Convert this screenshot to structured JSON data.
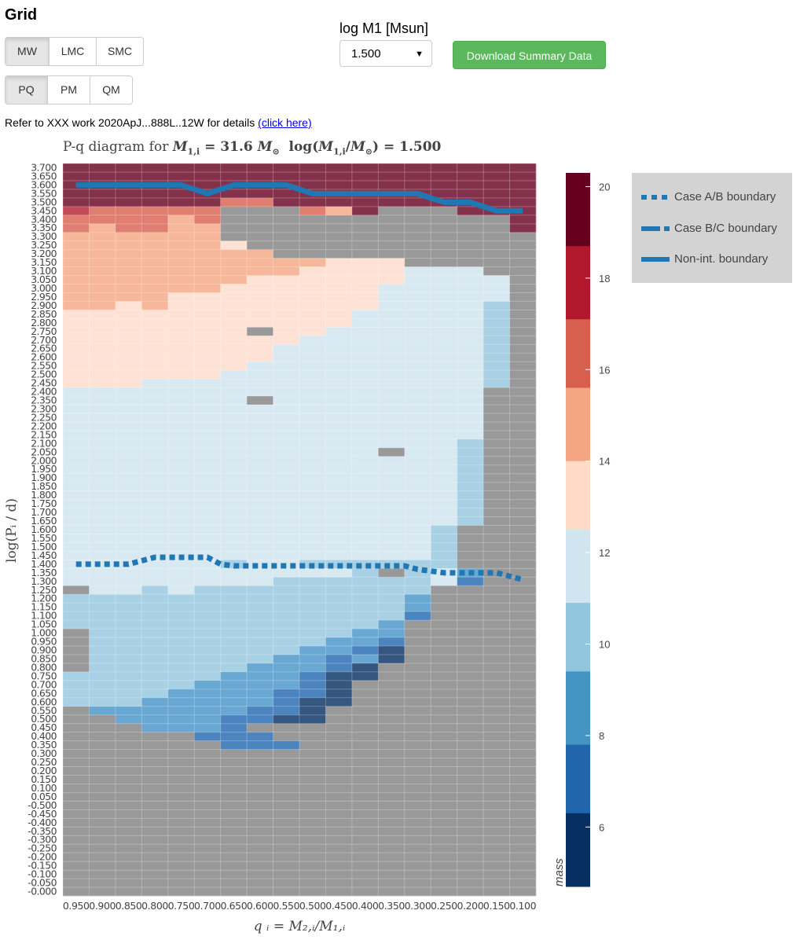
{
  "header": {
    "title": "Grid"
  },
  "galaxy_buttons": [
    {
      "label": "MW",
      "active": true
    },
    {
      "label": "LMC",
      "active": false
    },
    {
      "label": "SMC",
      "active": false
    }
  ],
  "diagram_buttons": [
    {
      "label": "PQ",
      "active": true
    },
    {
      "label": "PM",
      "active": false
    },
    {
      "label": "QM",
      "active": false
    }
  ],
  "mass_select": {
    "label": "log M1 [Msun]",
    "value": "1.500"
  },
  "download_button": {
    "label": "Download Summary Data"
  },
  "reference": {
    "text": "Refer to XXX work 2020ApJ...888L..12W for details",
    "link": "(click here)"
  },
  "chart_data": {
    "type": "heatmap",
    "title_prefix": "P-q diagram for ",
    "title_math_1": "M",
    "title_math_sub": "1,i",
    "title_eq": " = 31.6 ",
    "title_msun": "M",
    "title_log": "log(M",
    "title_log_rest": "/M",
    "title_end": ") = 1.500",
    "xlabel": "q_i = M_2,i/M_1,i",
    "ylabel": "log(P_i / d)",
    "x_categories": [
      "0.950",
      "0.900",
      "0.850",
      "0.800",
      "0.750",
      "0.700",
      "0.650",
      "0.600",
      "0.550",
      "0.500",
      "0.450",
      "0.400",
      "0.350",
      "0.300",
      "0.250",
      "0.200",
      "0.150",
      "0.100"
    ],
    "y_categories": [
      "3.700",
      "3.650",
      "3.600",
      "3.550",
      "3.500",
      "3.450",
      "3.400",
      "3.350",
      "3.300",
      "3.250",
      "3.200",
      "3.150",
      "3.100",
      "3.050",
      "3.000",
      "2.950",
      "2.900",
      "2.850",
      "2.800",
      "2.750",
      "2.700",
      "2.650",
      "2.600",
      "2.550",
      "2.500",
      "2.450",
      "2.400",
      "2.350",
      "2.300",
      "2.250",
      "2.200",
      "2.150",
      "2.100",
      "2.050",
      "2.000",
      "1.950",
      "1.900",
      "1.850",
      "1.800",
      "1.750",
      "1.700",
      "1.650",
      "1.600",
      "1.550",
      "1.500",
      "1.450",
      "1.400",
      "1.350",
      "1.300",
      "1.250",
      "1.200",
      "1.150",
      "1.100",
      "1.050",
      "1.000",
      "0.950",
      "0.900",
      "0.850",
      "0.800",
      "0.750",
      "0.700",
      "0.650",
      "0.600",
      "0.550",
      "0.500",
      "0.450",
      "0.400",
      "0.350",
      "0.300",
      "0.250",
      "0.200",
      "0.150",
      "0.100",
      "0.050",
      "-0.500",
      "-0.450",
      "-0.400",
      "-0.350",
      "-0.300",
      "-0.250",
      "-0.200",
      "-0.150",
      "-0.100",
      "-0.050",
      "-0.000"
    ],
    "value_key": {
      "D": 20.0,
      "r": 17.5,
      "R": 16.5,
      "O": 14.5,
      "P": 13.0,
      "L": 11.5,
      "B": 10.5,
      "M": 9.0,
      "N": 7.5,
      "K": 6.0,
      "G": null
    },
    "grid_rows": [
      "DDDDDDDDDDDDDDDDDD",
      "DDDDDDDDDDDDDDDDDD",
      "DDDDDDDDDDDDDDDDDD",
      "DDDDDDDDDDDDDDDDDD",
      "DDDDDDRRDDDDDDDDDD",
      "rRRRRRGGGRODGGGDDD",
      "RRRRORGGGGGGGGGGGD",
      "RORROOGGGGGGGGGGGD",
      "OOOOOOGGGGGGGGGGGG",
      "OOOOOOPGGGGGGGGGGG",
      "OOOOOOOOGGGGGGGGGG",
      "OOOOOOOOOOPPPGGGGG",
      "OOOOOOOOOPPPPLLLGG",
      "OOOOOOOPPPPPPLLLLG",
      "OOOOOOPPPPPPLLLLLG",
      "OOOOPPPPPPPPLLLLLG",
      "OOPOPPPPPPPPLLLLBG",
      "PPPPPPPPPPPLLLLLBG",
      "PPPPPPPPPPPLLLLLBG",
      "PPPPPPPGPPLLLLLLBG",
      "PPPPPPPPPLLLLLLLBG",
      "PPPPPPPPLLLLLLLLBG",
      "PPPPPPPPLLLLLLLLBG",
      "PPPPPPPLLLLLLLLLBG",
      "PPPPPPLLLLLLLLLLBG",
      "PPPLLLLLLLLLLLLLBG",
      "LLLLLLLLLLLLLLLLGG",
      "LLLLLLLGLLLLLLLLGG",
      "LLLLLLLLLLLLLLLLGG",
      "LLLLLLLLLLLLLLLLGG",
      "LLLLLLLLLLLLLLLLGG",
      "LLLLLLLLLLLLLLLLGG",
      "LLLLLLLLLLLLLLLBGG",
      "LLLLLLLLLLLLGLLBGG",
      "LLLLLLLLLLLLLLLBGG",
      "LLLLLLLLLLLLLLLBGG",
      "LLLLLLLLLLLLLLLBGG",
      "LLLLLLLLLLLLLLLBGG",
      "LLLLLLLLLLLLLLLBGG",
      "LLLLLLLLLLLLLLLBGG",
      "LLLLLLLLLLLLLLLBGG",
      "LLLLLLLLLLLLLLLBGG",
      "LLLLLLLLLLLLLLBGGG",
      "LLLLLLLLLLLLLLBGGG",
      "LLLLLLLLLLLLLLBGGG",
      "LLLLLLLLLLLLLLBGGG",
      "LLLLLLBLLBBBBBBGGG",
      "LLLLLLLLLLLBGBLMGG",
      "LLLLLLLLBBBBBBLNGG",
      "GLLBLBBBBBBBBBGGGG",
      "BBBBBBBBBBBBBMGGGG",
      "BBBBBBBBBBBBBMGGGG",
      "BBBBBBBBBBBBBNGGGG",
      "BBBBBBBBBBBBMGGGGG",
      "GBBBBBBBBBBMMGGGGG",
      "GBBBBBBBBBMMNGGGGG",
      "GBBBBBBBBMMNKGGGGG",
      "GBBBBBBBMMNMKGGGGG",
      "GBBBBBBMMMNKGGGGGG",
      "BBBBBBMMMNKKGGGGGG",
      "BBBBBMMMMNKGGGGGGG",
      "BBBBMMMMNNKGGGGGGG",
      "BBBMMMMMNKKGGGGGGG",
      "GMMMMMMNNKGGGGGGGG",
      "GGMMMMNNKKGGGGGGGG",
      "GGGMMMNGGGGGGGGGGG",
      "GGGGGNNNGGGGGGGGGG",
      "GGGGGGNNNGGGGGGGGG",
      "GGGGGGGGGGGGGGGGGG",
      "GGGGGGGGGGGGGGGGGG",
      "GGGGGGGGGGGGGGGGGG",
      "GGGGGGGGGGGGGGGGGG",
      "GGGGGGGGGGGGGGGGGG",
      "GGGGGGGGGGGGGGGGGG",
      "GGGGGGGGGGGGGGGGGG",
      "GGGGGGGGGGGGGGGGGG",
      "GGGGGGGGGGGGGGGGGG",
      "GGGGGGGGGGGGGGGGGG",
      "GGGGGGGGGGGGGGGGGG",
      "GGGGGGGGGGGGGGGGGG",
      "GGGGGGGGGGGGGGGGGG",
      "GGGGGGGGGGGGGGGGGG",
      "GGGGGGGGGGGGGGGGGG",
      "GGGGGGGGGGGGGGGGGG",
      "GGGGGGGGGGGGGGGGGG"
    ],
    "boundaries": [
      {
        "name": "Case A/B boundary",
        "style": "dotted",
        "x": [
          0.95,
          0.9,
          0.85,
          0.825,
          0.8,
          0.75,
          0.7,
          0.675,
          0.65,
          0.6,
          0.55,
          0.5,
          0.45,
          0.4,
          0.35,
          0.325,
          0.3,
          0.25,
          0.2,
          0.175,
          0.15,
          0.125,
          0.1
        ],
        "y": [
          1.4,
          1.4,
          1.4,
          1.42,
          1.44,
          1.44,
          1.44,
          1.4,
          1.39,
          1.39,
          1.39,
          1.39,
          1.39,
          1.39,
          1.39,
          1.39,
          1.37,
          1.35,
          1.35,
          1.35,
          1.35,
          1.33,
          1.31
        ]
      },
      {
        "name": "Non-int. boundary",
        "style": "solid",
        "x": [
          0.95,
          0.9,
          0.85,
          0.8,
          0.75,
          0.7,
          0.65,
          0.6,
          0.55,
          0.5,
          0.45,
          0.4,
          0.35,
          0.3,
          0.25,
          0.2,
          0.15,
          0.1
        ],
        "y": [
          3.6,
          3.6,
          3.6,
          3.6,
          3.6,
          3.55,
          3.6,
          3.6,
          3.6,
          3.55,
          3.55,
          3.55,
          3.55,
          3.55,
          3.5,
          3.5,
          3.45,
          3.45
        ]
      }
    ],
    "legend": [
      {
        "label": "Case A/B boundary",
        "style": "dotted"
      },
      {
        "label": "Case B/C boundary",
        "style": "dashdot"
      },
      {
        "label": "Non-int. boundary",
        "style": "solid"
      }
    ],
    "colorbar": {
      "label": "mass",
      "range": [
        4.7,
        20.3
      ],
      "ticks": [
        20,
        18,
        16,
        14,
        12,
        10,
        8,
        6
      ],
      "bands": [
        {
          "from": 18.7,
          "to": 20.3,
          "color": "#67001f"
        },
        {
          "from": 17.1,
          "to": 18.7,
          "color": "#b2182b"
        },
        {
          "from": 15.6,
          "to": 17.1,
          "color": "#d6604d"
        },
        {
          "from": 14.0,
          "to": 15.6,
          "color": "#f4a582"
        },
        {
          "from": 12.5,
          "to": 14.0,
          "color": "#fddbc7"
        },
        {
          "from": 10.9,
          "to": 12.5,
          "color": "#d1e5f0"
        },
        {
          "from": 9.4,
          "to": 10.9,
          "color": "#92c5de"
        },
        {
          "from": 7.8,
          "to": 9.4,
          "color": "#4393c3"
        },
        {
          "from": 6.3,
          "to": 7.8,
          "color": "#2166ac"
        },
        {
          "from": 4.7,
          "to": 6.3,
          "color": "#053061"
        }
      ]
    },
    "cell_colors": {
      "D": "#84324c",
      "r": "#c54a58",
      "R": "#e07e72",
      "O": "#f6b79a",
      "P": "#fde2d5",
      "L": "#d9e9f2",
      "B": "#a8d1e5",
      "M": "#69a8d2",
      "N": "#4b84bf",
      "K": "#35567f",
      "G": "#999999"
    },
    "line_color": "#1f77b4",
    "grid": true
  }
}
